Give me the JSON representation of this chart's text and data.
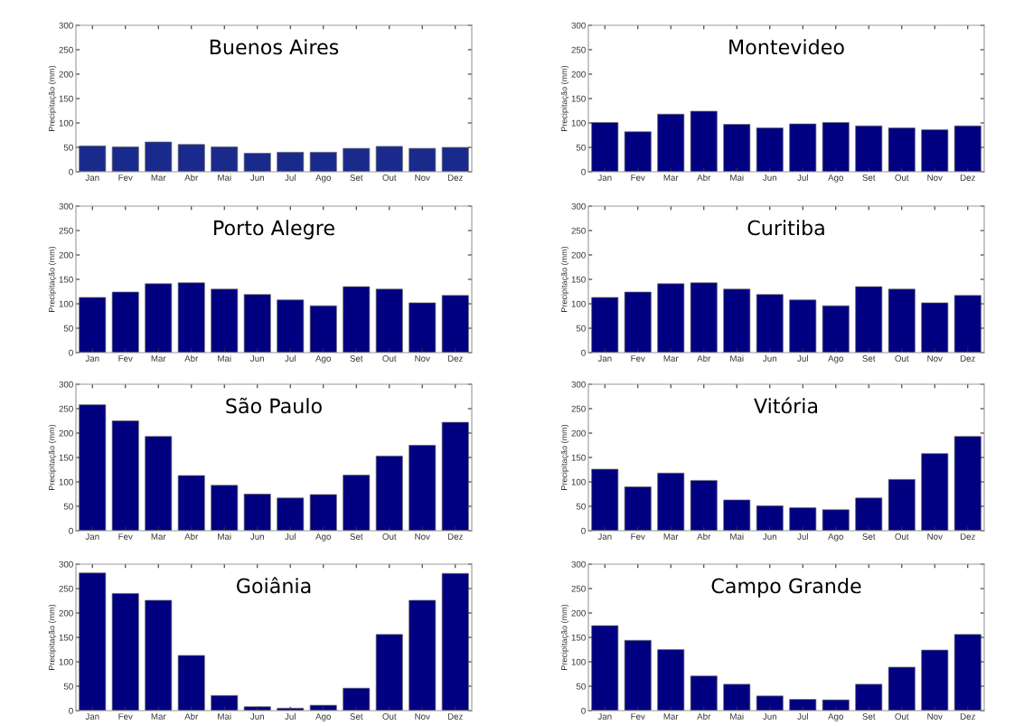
{
  "chart_data": [
    {
      "type": "bar",
      "title": "Buenos Aires",
      "ylabel": "Precipitação (mm)",
      "categories": [
        "Jan",
        "Fev",
        "Mar",
        "Abr",
        "Mai",
        "Jun",
        "Jul",
        "Ago",
        "Set",
        "Out",
        "Nov",
        "Dez"
      ],
      "values": [
        53,
        51,
        61,
        56,
        51,
        38,
        40,
        40,
        48,
        52,
        48,
        50
      ],
      "color": "#1a2a8c",
      "ylim": [
        0,
        300
      ],
      "yticks": [
        0,
        50,
        100,
        150,
        200,
        250,
        300
      ]
    },
    {
      "type": "bar",
      "title": "Montevideo",
      "ylabel": "Precipitação (mm)",
      "categories": [
        "Jan",
        "Fev",
        "Mar",
        "Abr",
        "Mai",
        "Jun",
        "Jul",
        "Ago",
        "Set",
        "Out",
        "Nov",
        "Dez"
      ],
      "values": [
        101,
        82,
        118,
        124,
        97,
        90,
        98,
        101,
        94,
        90,
        86,
        94
      ],
      "color": "#000080",
      "ylim": [
        0,
        300
      ],
      "yticks": [
        0,
        50,
        100,
        150,
        200,
        250,
        300
      ]
    },
    {
      "type": "bar",
      "title": "Porto Alegre",
      "ylabel": "Precipitação (mm)",
      "categories": [
        "Jan",
        "Fev",
        "Mar",
        "Abr",
        "Mai",
        "Jun",
        "Jul",
        "Ago",
        "Set",
        "Out",
        "Nov",
        "Dez"
      ],
      "values": [
        113,
        124,
        141,
        143,
        130,
        119,
        108,
        96,
        135,
        130,
        102,
        117
      ],
      "color": "#000080",
      "ylim": [
        0,
        300
      ],
      "yticks": [
        0,
        50,
        100,
        150,
        200,
        250,
        300
      ]
    },
    {
      "type": "bar",
      "title": "Curitiba",
      "ylabel": "Precipitação (mm)",
      "categories": [
        "Jan",
        "Fev",
        "Mar",
        "Abr",
        "Mai",
        "Jun",
        "Jul",
        "Ago",
        "Set",
        "Out",
        "Nov",
        "Dez"
      ],
      "values": [
        113,
        124,
        141,
        143,
        130,
        119,
        108,
        96,
        135,
        130,
        102,
        117
      ],
      "color": "#000080",
      "ylim": [
        0,
        300
      ],
      "yticks": [
        0,
        50,
        100,
        150,
        200,
        250,
        300
      ]
    },
    {
      "type": "bar",
      "title": "São Paulo",
      "ylabel": "Precipitação (mm)",
      "categories": [
        "Jan",
        "Fev",
        "Mar",
        "Abr",
        "Mai",
        "Jun",
        "Jul",
        "Ago",
        "Set",
        "Out",
        "Nov",
        "Dez"
      ],
      "values": [
        258,
        225,
        193,
        113,
        93,
        75,
        67,
        74,
        114,
        153,
        175,
        222
      ],
      "color": "#000080",
      "ylim": [
        0,
        300
      ],
      "yticks": [
        0,
        50,
        100,
        150,
        200,
        250,
        300
      ]
    },
    {
      "type": "bar",
      "title": "Vitória",
      "ylabel": "Precipitação (mm)",
      "categories": [
        "Jan",
        "Fev",
        "Mar",
        "Abr",
        "Mai",
        "Jun",
        "Jul",
        "Ago",
        "Set",
        "Out",
        "Nov",
        "Dez"
      ],
      "values": [
        126,
        90,
        118,
        103,
        63,
        51,
        47,
        43,
        67,
        105,
        158,
        193
      ],
      "color": "#000080",
      "ylim": [
        0,
        300
      ],
      "yticks": [
        0,
        50,
        100,
        150,
        200,
        250,
        300
      ]
    },
    {
      "type": "bar",
      "title": "Goiânia",
      "ylabel": "Precipitação (mm)",
      "categories": [
        "Jan",
        "Fev",
        "Mar",
        "Abr",
        "Mai",
        "Jun",
        "Jul",
        "Ago",
        "Set",
        "Out",
        "Nov",
        "Dez"
      ],
      "values": [
        282,
        240,
        226,
        113,
        31,
        8,
        5,
        11,
        46,
        156,
        226,
        281
      ],
      "color": "#000080",
      "ylim": [
        0,
        300
      ],
      "yticks": [
        0,
        50,
        100,
        150,
        200,
        250,
        300
      ]
    },
    {
      "type": "bar",
      "title": "Campo Grande",
      "ylabel": "Precipitação (mm)",
      "categories": [
        "Jan",
        "Fev",
        "Mar",
        "Abr",
        "Mai",
        "Jun",
        "Jul",
        "Ago",
        "Set",
        "Out",
        "Nov",
        "Dez"
      ],
      "values": [
        174,
        144,
        125,
        71,
        54,
        30,
        23,
        22,
        54,
        89,
        124,
        156
      ],
      "color": "#000080",
      "ylim": [
        0,
        300
      ],
      "yticks": [
        0,
        50,
        100,
        150,
        200,
        250,
        300
      ]
    }
  ]
}
